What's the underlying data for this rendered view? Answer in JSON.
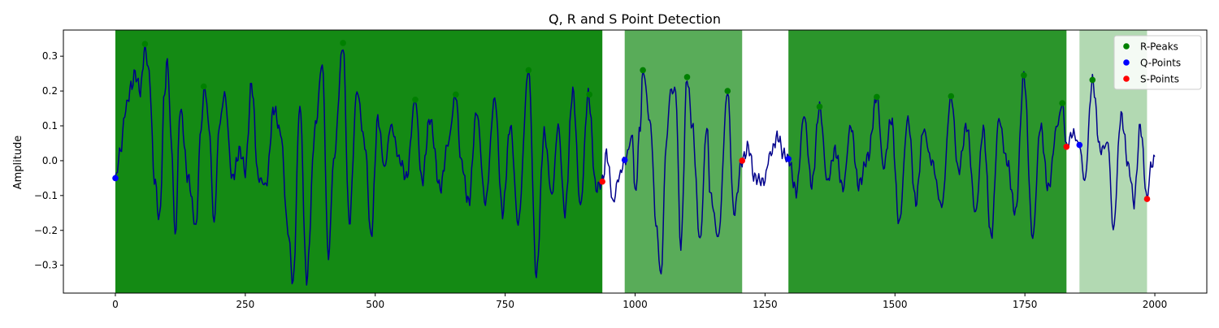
{
  "chart_data": {
    "type": "line",
    "title": "Q, R and S Point Detection",
    "xlabel": "",
    "ylabel": "Amplitude",
    "xlim": [
      -100,
      2100
    ],
    "ylim": [
      -0.38,
      0.375
    ],
    "x_ticks": [
      0,
      250,
      500,
      750,
      1000,
      1250,
      1500,
      1750,
      2000
    ],
    "y_ticks": [
      -0.3,
      -0.2,
      -0.1,
      0.0,
      0.1,
      0.2,
      0.3
    ],
    "y_tick_labels": [
      "−0.3",
      "−0.2",
      "−0.1",
      "0.0",
      "0.1",
      "0.2",
      "0.3"
    ],
    "grid": false,
    "legend_position": "top-right",
    "signal_color": "#00008b",
    "shaded_regions": [
      {
        "start": 0,
        "end": 937,
        "color": "#008000",
        "alpha": 0.92
      },
      {
        "start": 980,
        "end": 1206,
        "color": "#008000",
        "alpha": 0.65
      },
      {
        "start": 1295,
        "end": 1830,
        "color": "#008000",
        "alpha": 0.83
      },
      {
        "start": 1855,
        "end": 1985,
        "color": "#008000",
        "alpha": 0.3
      }
    ],
    "signal_control_points": [
      [
        0,
        -0.05
      ],
      [
        10,
        0.03
      ],
      [
        20,
        0.15
      ],
      [
        30,
        0.21
      ],
      [
        38,
        0.25
      ],
      [
        48,
        0.2
      ],
      [
        57,
        0.325
      ],
      [
        65,
        0.25
      ],
      [
        75,
        -0.05
      ],
      [
        85,
        -0.17
      ],
      [
        95,
        0.2
      ],
      [
        100,
        0.29
      ],
      [
        108,
        0.05
      ],
      [
        115,
        -0.22
      ],
      [
        125,
        0.15
      ],
      [
        140,
        -0.05
      ],
      [
        155,
        -0.19
      ],
      [
        165,
        0.1
      ],
      [
        172,
        0.215
      ],
      [
        180,
        0.1
      ],
      [
        190,
        -0.18
      ],
      [
        200,
        0.1
      ],
      [
        210,
        0.19
      ],
      [
        225,
        -0.05
      ],
      [
        240,
        0.03
      ],
      [
        250,
        -0.03
      ],
      [
        262,
        0.22
      ],
      [
        275,
        -0.05
      ],
      [
        290,
        -0.07
      ],
      [
        305,
        0.15
      ],
      [
        318,
        0.08
      ],
      [
        332,
        -0.2
      ],
      [
        342,
        -0.35
      ],
      [
        355,
        0.16
      ],
      [
        368,
        -0.34
      ],
      [
        385,
        0.1
      ],
      [
        398,
        0.28
      ],
      [
        410,
        -0.28
      ],
      [
        420,
        0.0
      ],
      [
        438,
        0.33
      ],
      [
        450,
        -0.18
      ],
      [
        465,
        0.2
      ],
      [
        480,
        0.05
      ],
      [
        492,
        -0.22
      ],
      [
        505,
        0.12
      ],
      [
        518,
        -0.02
      ],
      [
        530,
        0.1
      ],
      [
        548,
        0.0
      ],
      [
        560,
        -0.05
      ],
      [
        577,
        0.175
      ],
      [
        590,
        -0.06
      ],
      [
        605,
        0.12
      ],
      [
        625,
        -0.08
      ],
      [
        640,
        0.05
      ],
      [
        655,
        0.19
      ],
      [
        665,
        0.0
      ],
      [
        680,
        -0.12
      ],
      [
        695,
        0.14
      ],
      [
        712,
        -0.12
      ],
      [
        730,
        0.18
      ],
      [
        745,
        -0.15
      ],
      [
        760,
        0.1
      ],
      [
        775,
        -0.18
      ],
      [
        795,
        0.26
      ],
      [
        810,
        -0.33
      ],
      [
        825,
        0.08
      ],
      [
        840,
        -0.1
      ],
      [
        852,
        0.1
      ],
      [
        865,
        -0.15
      ],
      [
        880,
        0.2
      ],
      [
        895,
        -0.13
      ],
      [
        910,
        0.19
      ],
      [
        925,
        -0.08
      ],
      [
        937,
        -0.06
      ],
      [
        945,
        0.02
      ],
      [
        958,
        -0.12
      ],
      [
        968,
        -0.05
      ],
      [
        980,
        0.0
      ],
      [
        995,
        0.07
      ],
      [
        1000,
        -0.1
      ],
      [
        1010,
        0.1
      ],
      [
        1015,
        0.26
      ],
      [
        1030,
        0.1
      ],
      [
        1040,
        -0.18
      ],
      [
        1050,
        -0.33
      ],
      [
        1060,
        0.05
      ],
      [
        1068,
        0.2
      ],
      [
        1078,
        0.2
      ],
      [
        1088,
        -0.25
      ],
      [
        1100,
        0.24
      ],
      [
        1110,
        0.1
      ],
      [
        1125,
        -0.23
      ],
      [
        1138,
        0.1
      ],
      [
        1145,
        -0.1
      ],
      [
        1160,
        -0.22
      ],
      [
        1178,
        0.2
      ],
      [
        1190,
        -0.15
      ],
      [
        1206,
        0.0
      ],
      [
        1218,
        0.04
      ],
      [
        1230,
        -0.05
      ],
      [
        1248,
        -0.06
      ],
      [
        1260,
        0.02
      ],
      [
        1275,
        0.07
      ],
      [
        1285,
        0.02
      ],
      [
        1295,
        0.005
      ],
      [
        1310,
        -0.09
      ],
      [
        1325,
        0.13
      ],
      [
        1340,
        -0.07
      ],
      [
        1355,
        0.155
      ],
      [
        1370,
        -0.06
      ],
      [
        1385,
        0.03
      ],
      [
        1400,
        -0.08
      ],
      [
        1415,
        0.1
      ],
      [
        1430,
        -0.07
      ],
      [
        1448,
        0.01
      ],
      [
        1465,
        0.185
      ],
      [
        1478,
        -0.02
      ],
      [
        1493,
        0.12
      ],
      [
        1508,
        -0.18
      ],
      [
        1525,
        0.12
      ],
      [
        1540,
        -0.12
      ],
      [
        1555,
        0.09
      ],
      [
        1570,
        0.0
      ],
      [
        1590,
        -0.13
      ],
      [
        1608,
        0.185
      ],
      [
        1622,
        -0.03
      ],
      [
        1638,
        0.1
      ],
      [
        1655,
        -0.15
      ],
      [
        1670,
        0.09
      ],
      [
        1685,
        -0.22
      ],
      [
        1700,
        0.12
      ],
      [
        1715,
        0.0
      ],
      [
        1732,
        -0.15
      ],
      [
        1748,
        0.245
      ],
      [
        1765,
        -0.22
      ],
      [
        1780,
        0.1
      ],
      [
        1795,
        -0.08
      ],
      [
        1812,
        0.1
      ],
      [
        1822,
        0.165
      ],
      [
        1830,
        0.04
      ],
      [
        1842,
        0.08
      ],
      [
        1855,
        0.045
      ],
      [
        1865,
        -0.06
      ],
      [
        1880,
        0.23
      ],
      [
        1895,
        0.03
      ],
      [
        1910,
        0.05
      ],
      [
        1920,
        -0.2
      ],
      [
        1935,
        0.13
      ],
      [
        1950,
        -0.02
      ],
      [
        1960,
        -0.12
      ],
      [
        1972,
        0.1
      ],
      [
        1985,
        -0.11
      ],
      [
        1992,
        -0.02
      ],
      [
        2000,
        0.012
      ]
    ],
    "series": [
      {
        "name": "R-Peaks",
        "color": "#008000",
        "points": [
          [
            57,
            0.335
          ],
          [
            170,
            0.213
          ],
          [
            438,
            0.338
          ],
          [
            577,
            0.175
          ],
          [
            655,
            0.19
          ],
          [
            795,
            0.26
          ],
          [
            912,
            0.19
          ],
          [
            1015,
            0.26
          ],
          [
            1100,
            0.24
          ],
          [
            1178,
            0.2
          ],
          [
            1355,
            0.155
          ],
          [
            1465,
            0.183
          ],
          [
            1608,
            0.185
          ],
          [
            1748,
            0.245
          ],
          [
            1822,
            0.165
          ],
          [
            1880,
            0.232
          ]
        ]
      },
      {
        "name": "Q-Points",
        "color": "#0000ff",
        "points": [
          [
            0,
            -0.05
          ],
          [
            980,
            0.002
          ],
          [
            1295,
            0.005
          ],
          [
            1855,
            0.045
          ]
        ]
      },
      {
        "name": "S-Points",
        "color": "#ff0000",
        "points": [
          [
            937,
            -0.06
          ],
          [
            1206,
            0.0
          ],
          [
            1830,
            0.04
          ],
          [
            1985,
            -0.11
          ]
        ]
      }
    ]
  }
}
